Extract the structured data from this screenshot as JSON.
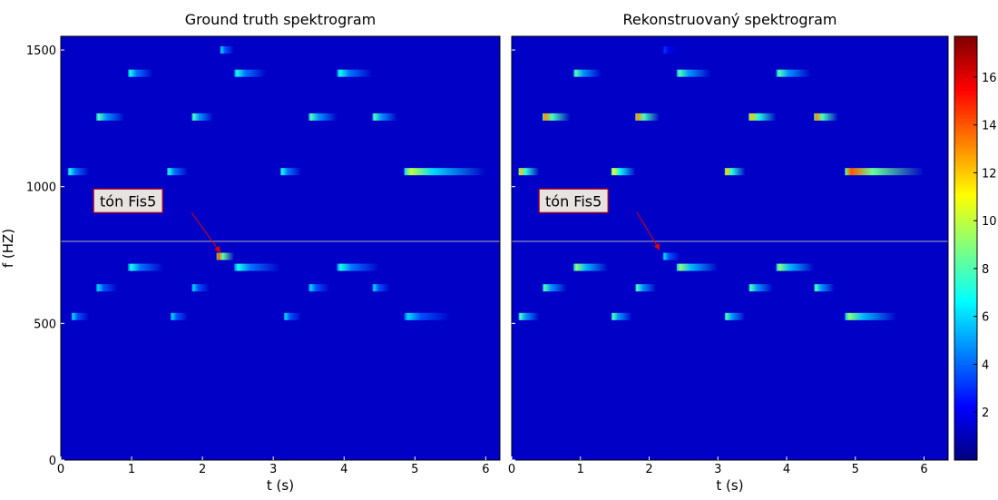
{
  "chart_data": [
    {
      "type": "spectrogram",
      "title": "Ground truth spektrogram",
      "xlabel": "t (s)",
      "ylabel": "f (HZ)",
      "xlim": [
        0,
        6.2
      ],
      "ylim": [
        0,
        1550
      ],
      "xticks": [
        0,
        1,
        2,
        3,
        4,
        5,
        6
      ],
      "yticks": [
        0,
        500,
        1000,
        1500
      ],
      "show_ytick_labels": true,
      "hline": 800,
      "annotation": {
        "text": "tón Fis5",
        "xy": [
          2.25,
          760
        ],
        "xytext": [
          0.95,
          945
        ]
      },
      "notes": [
        {
          "t": [
            2.25,
            2.45
          ],
          "f": 1500,
          "peak": 6
        },
        {
          "t": [
            0.95,
            1.3
          ],
          "f": 1415,
          "peak": 7
        },
        {
          "t": [
            2.45,
            2.9
          ],
          "f": 1415,
          "peak": 7
        },
        {
          "t": [
            3.9,
            4.4
          ],
          "f": 1415,
          "peak": 7
        },
        {
          "t": [
            0.5,
            0.9
          ],
          "f": 1255,
          "peak": 8
        },
        {
          "t": [
            1.85,
            2.15
          ],
          "f": 1255,
          "peak": 8
        },
        {
          "t": [
            3.5,
            3.9
          ],
          "f": 1255,
          "peak": 8
        },
        {
          "t": [
            4.4,
            4.75
          ],
          "f": 1255,
          "peak": 8
        },
        {
          "t": [
            0.1,
            0.4
          ],
          "f": 1055,
          "peak": 7
        },
        {
          "t": [
            1.5,
            1.8
          ],
          "f": 1055,
          "peak": 7
        },
        {
          "t": [
            3.1,
            3.4
          ],
          "f": 1055,
          "peak": 7
        },
        {
          "t": [
            4.85,
            6.0
          ],
          "f": 1055,
          "peak": 10
        },
        {
          "t": [
            2.2,
            2.45
          ],
          "f": 745,
          "peak": 14
        },
        {
          "t": [
            0.95,
            1.45
          ],
          "f": 705,
          "peak": 7
        },
        {
          "t": [
            2.45,
            3.1
          ],
          "f": 705,
          "peak": 7
        },
        {
          "t": [
            3.9,
            4.5
          ],
          "f": 705,
          "peak": 7
        },
        {
          "t": [
            0.5,
            0.8
          ],
          "f": 630,
          "peak": 6
        },
        {
          "t": [
            1.85,
            2.1
          ],
          "f": 630,
          "peak": 6
        },
        {
          "t": [
            3.5,
            3.8
          ],
          "f": 630,
          "peak": 6
        },
        {
          "t": [
            4.4,
            4.65
          ],
          "f": 630,
          "peak": 6
        },
        {
          "t": [
            0.15,
            0.4
          ],
          "f": 525,
          "peak": 6
        },
        {
          "t": [
            1.55,
            1.8
          ],
          "f": 525,
          "peak": 6
        },
        {
          "t": [
            3.15,
            3.4
          ],
          "f": 525,
          "peak": 6
        },
        {
          "t": [
            4.85,
            5.5
          ],
          "f": 525,
          "peak": 6
        }
      ]
    },
    {
      "type": "spectrogram",
      "title": "Rekonstruovaný spektrogram",
      "xlabel": "t (s)",
      "xlim": [
        0,
        6.35
      ],
      "ylim": [
        0,
        1550
      ],
      "xticks": [
        0,
        1,
        2,
        3,
        4,
        5,
        6
      ],
      "yticks": [
        0,
        500,
        1000,
        1500
      ],
      "show_ytick_labels": false,
      "hline": 800,
      "annotation": {
        "text": "tón Fis5",
        "xy": [
          2.15,
          770
        ],
        "xytext": [
          0.9,
          945
        ]
      },
      "notes": [
        {
          "t": [
            2.2,
            2.45
          ],
          "f": 1500,
          "peak": 3
        },
        {
          "t": [
            0.9,
            1.3
          ],
          "f": 1415,
          "peak": 8
        },
        {
          "t": [
            2.4,
            2.9
          ],
          "f": 1415,
          "peak": 8
        },
        {
          "t": [
            3.85,
            4.35
          ],
          "f": 1415,
          "peak": 8
        },
        {
          "t": [
            0.45,
            0.85
          ],
          "f": 1255,
          "peak": 13
        },
        {
          "t": [
            1.8,
            2.15
          ],
          "f": 1255,
          "peak": 13
        },
        {
          "t": [
            3.45,
            3.85
          ],
          "f": 1255,
          "peak": 12
        },
        {
          "t": [
            4.4,
            4.75
          ],
          "f": 1255,
          "peak": 13
        },
        {
          "t": [
            0.1,
            0.4
          ],
          "f": 1055,
          "peak": 12
        },
        {
          "t": [
            1.45,
            1.8
          ],
          "f": 1055,
          "peak": 11
        },
        {
          "t": [
            3.1,
            3.4
          ],
          "f": 1055,
          "peak": 12
        },
        {
          "t": [
            4.85,
            6.0
          ],
          "f": 1055,
          "peak": 14
        },
        {
          "t": [
            2.2,
            2.45
          ],
          "f": 745,
          "peak": 6
        },
        {
          "t": [
            0.9,
            1.4
          ],
          "f": 705,
          "peak": 9
        },
        {
          "t": [
            2.4,
            3.0
          ],
          "f": 705,
          "peak": 9
        },
        {
          "t": [
            3.85,
            4.4
          ],
          "f": 705,
          "peak": 9
        },
        {
          "t": [
            0.45,
            0.8
          ],
          "f": 630,
          "peak": 8
        },
        {
          "t": [
            1.8,
            2.1
          ],
          "f": 630,
          "peak": 8
        },
        {
          "t": [
            3.45,
            3.8
          ],
          "f": 630,
          "peak": 8
        },
        {
          "t": [
            4.4,
            4.7
          ],
          "f": 630,
          "peak": 8
        },
        {
          "t": [
            0.1,
            0.4
          ],
          "f": 525,
          "peak": 8
        },
        {
          "t": [
            1.45,
            1.75
          ],
          "f": 525,
          "peak": 8
        },
        {
          "t": [
            3.1,
            3.4
          ],
          "f": 525,
          "peak": 8
        },
        {
          "t": [
            4.85,
            5.6
          ],
          "f": 525,
          "peak": 9
        }
      ],
      "colorbar": {
        "lim": [
          0,
          17.7
        ],
        "ticks": [
          2,
          4,
          6,
          8,
          10,
          12,
          14,
          16
        ],
        "colormap": "jet"
      }
    }
  ]
}
